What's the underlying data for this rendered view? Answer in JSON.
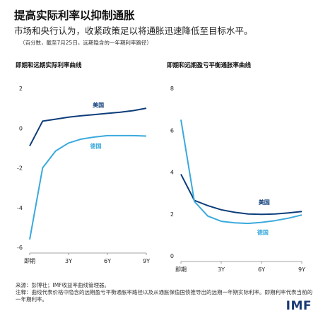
{
  "header": {
    "title": "提高实际利率以抑制通胀",
    "subtitle": "市场和央行认为，收紧政策足以将通胀迅速降低至目标水平。",
    "note": "（百分数，截至7月25日，远期隐含的一年期利率路径）"
  },
  "footer": {
    "source": "来源：彭博社；IMF收益率曲线管理器。",
    "footnote": "注释：曲线代表价格中隐含的远期盈亏平衡通胀率路径以及从通胀保值国债推导出的远期一年期实际利率。即期利率代表当前的一年期利率。",
    "logo": "IMF"
  },
  "colors": {
    "us": "#0d3d7a",
    "germany": "#3aa9dc",
    "axis": "#888888",
    "text": "#222222"
  },
  "chart_data": [
    {
      "type": "line",
      "title": "即期和远期实际利率曲线",
      "x": [
        0,
        1,
        2,
        3,
        4,
        5,
        6,
        7,
        8,
        9
      ],
      "x_tick_positions": [
        0,
        3,
        6,
        9
      ],
      "x_tick_labels": [
        "即期",
        "3Y",
        "6Y",
        "9Y"
      ],
      "ylim": [
        -6,
        2
      ],
      "yticks": [
        -6,
        -4,
        -2,
        0,
        2
      ],
      "series": [
        {
          "name": "美国",
          "values": [
            -0.9,
            0.35,
            0.45,
            0.55,
            0.62,
            0.68,
            0.74,
            0.8,
            0.88,
            1.0
          ]
        },
        {
          "name": "德国",
          "values": [
            -5.6,
            -2.0,
            -1.15,
            -0.75,
            -0.55,
            -0.45,
            -0.38,
            -0.38,
            -0.38,
            -0.4
          ]
        }
      ]
    },
    {
      "type": "line",
      "title": "即期和远期盈亏平衡通胀率曲线",
      "x": [
        0,
        1,
        2,
        3,
        4,
        5,
        6,
        7,
        8,
        9
      ],
      "x_tick_positions": [
        0,
        3,
        6,
        9
      ],
      "x_tick_labels": [
        "即期",
        "3Y",
        "6Y",
        "9Y"
      ],
      "ylim": [
        0,
        8
      ],
      "yticks": [
        0,
        2,
        4,
        6,
        8
      ],
      "series": [
        {
          "name": "美国",
          "values": [
            3.9,
            2.65,
            2.4,
            2.2,
            2.08,
            2.0,
            1.98,
            2.0,
            2.05,
            2.12
          ]
        },
        {
          "name": "德国",
          "values": [
            6.5,
            2.6,
            1.9,
            1.65,
            1.58,
            1.55,
            1.6,
            1.68,
            1.8,
            1.95
          ]
        }
      ]
    }
  ]
}
